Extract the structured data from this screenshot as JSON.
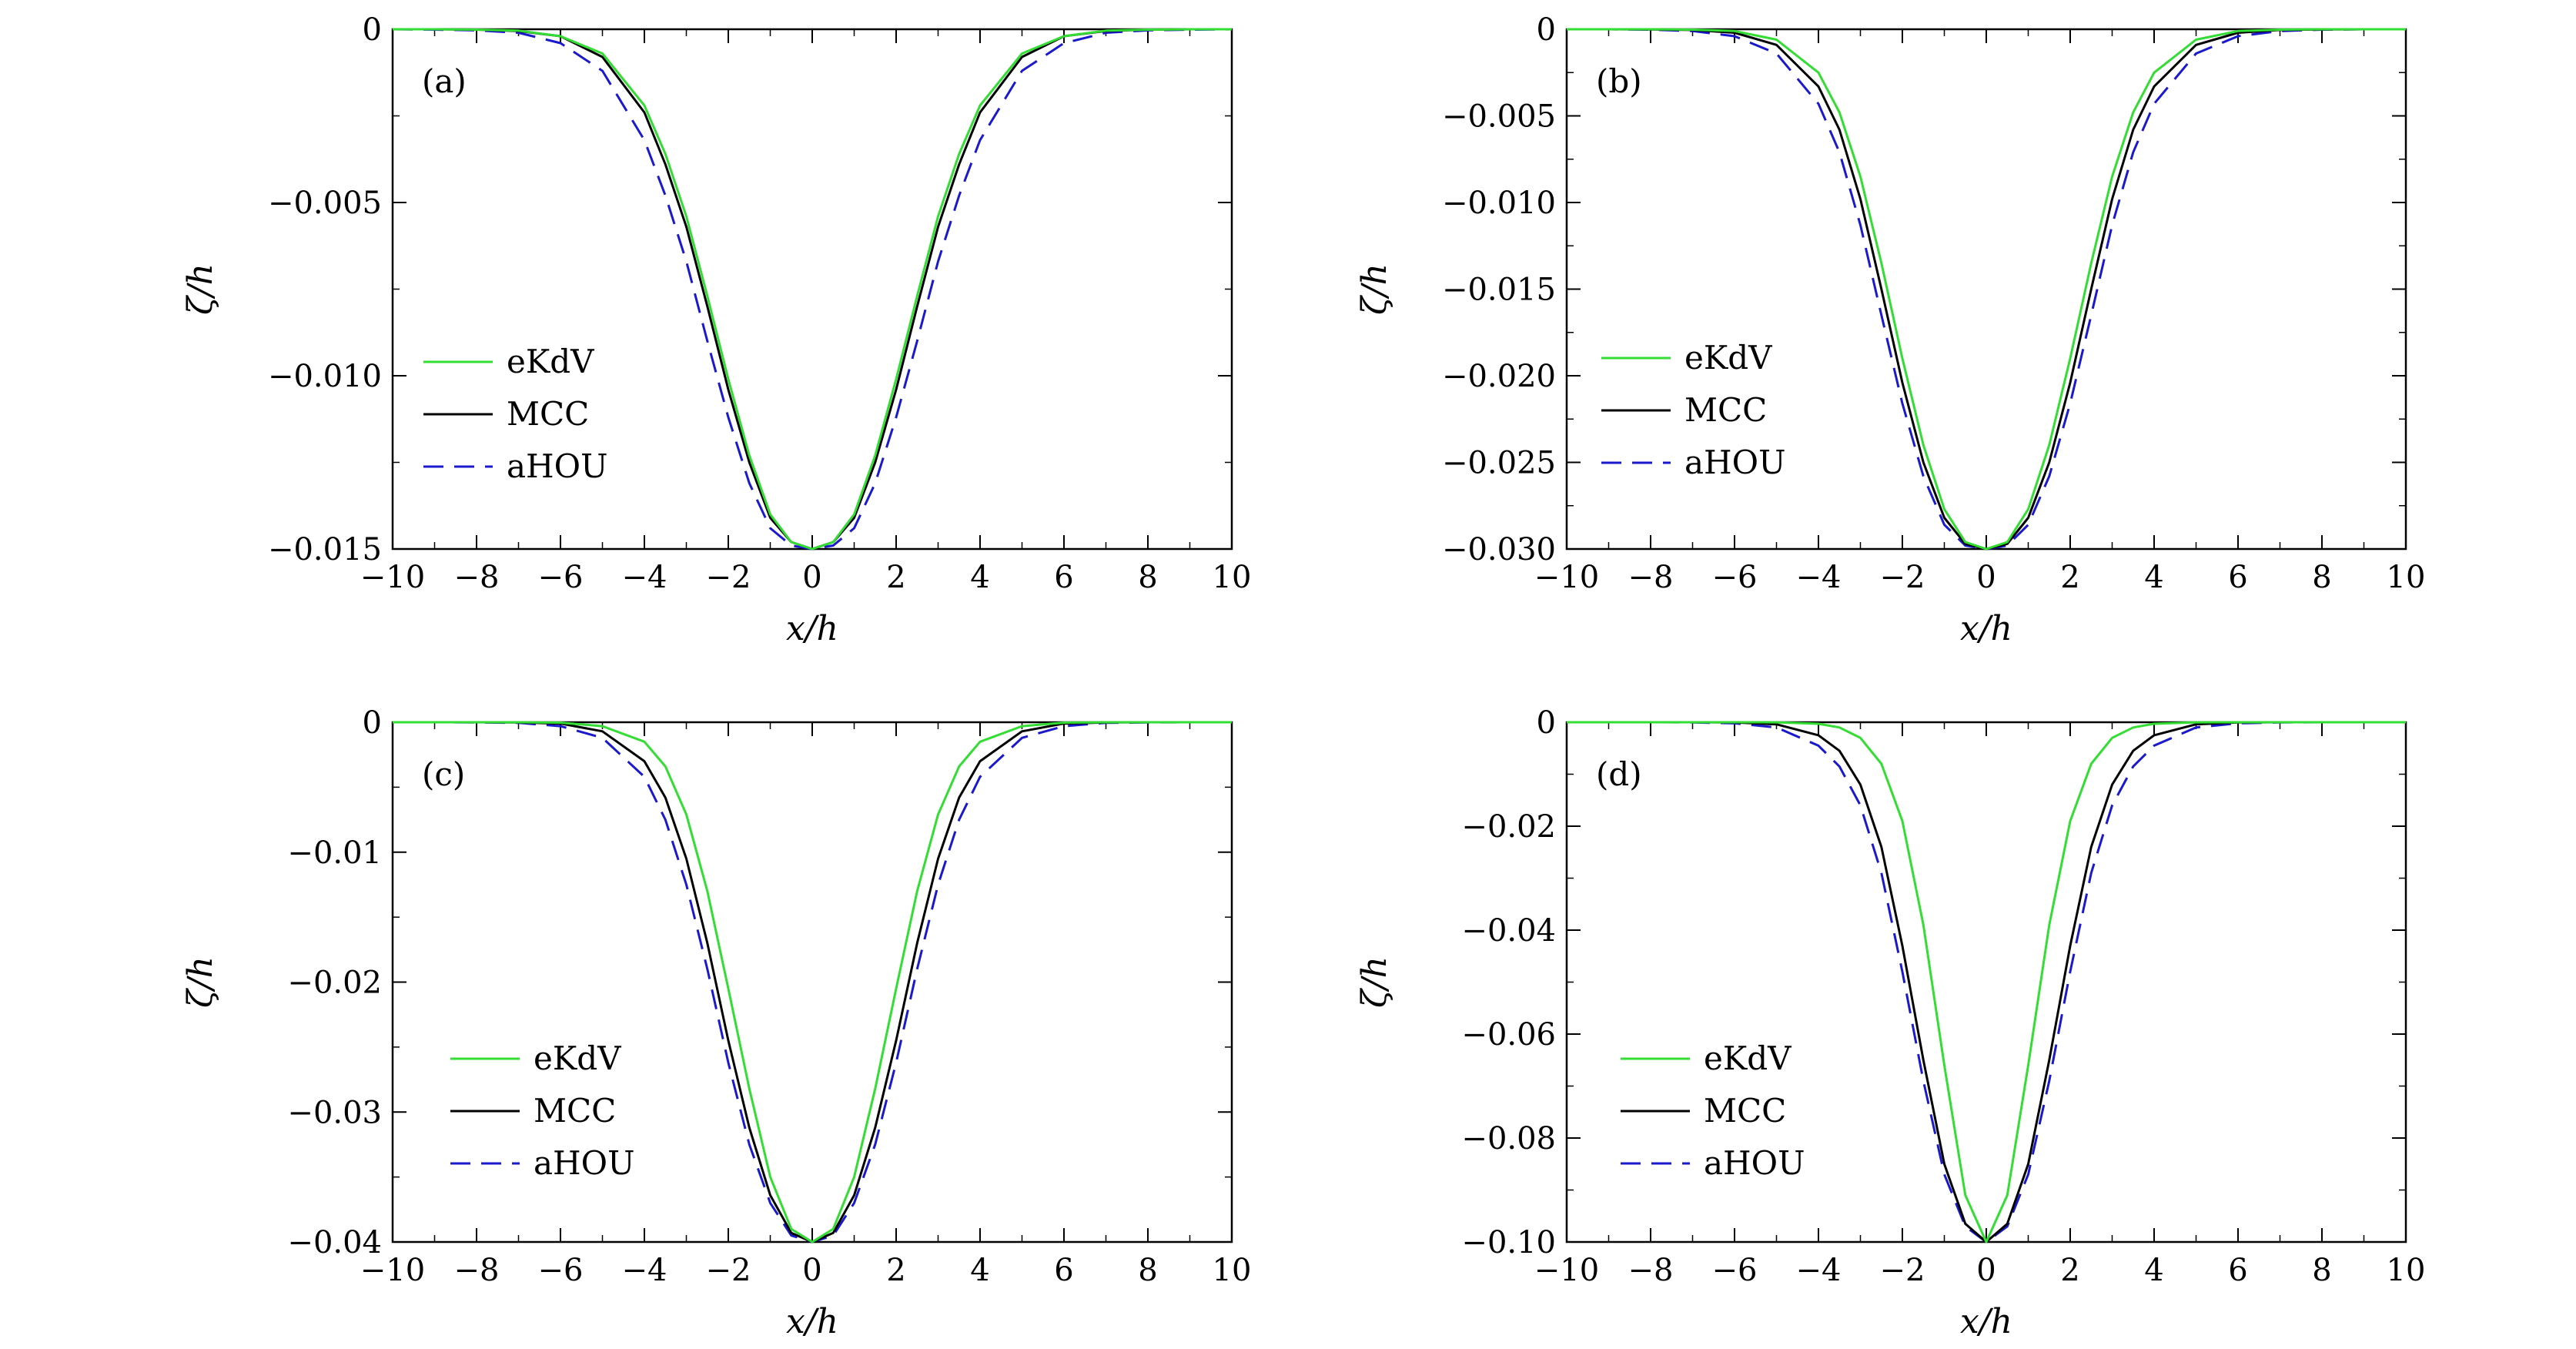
{
  "figure": {
    "colors": {
      "eKdV": "#33dd33",
      "MCC": "#000000",
      "aHOU": "#1a1acc"
    }
  },
  "chart_data": [
    {
      "type": "line",
      "panel_label": "(a)",
      "xlabel": "x/h",
      "ylabel": "ζ/h",
      "xlim": [
        -10,
        10
      ],
      "ylim": [
        -0.015,
        0
      ],
      "xticks": [
        -10,
        -8,
        -6,
        -4,
        -2,
        0,
        2,
        4,
        6,
        8,
        10
      ],
      "xtick_labels": [
        "−10",
        "−8",
        "−6",
        "−4",
        "−2",
        "0",
        "2",
        "4",
        "6",
        "8",
        "10"
      ],
      "yticks": [
        0,
        -0.005,
        -0.01,
        -0.015
      ],
      "ytick_labels": [
        "0",
        "−0.005",
        "−0.010",
        "−0.015"
      ],
      "grid": false,
      "legend_position": "bottom-left",
      "x": [
        -10,
        -9,
        -8,
        -7,
        -6,
        -5,
        -4,
        -3.5,
        -3,
        -2.5,
        -2,
        -1.5,
        -1,
        -0.5,
        0,
        0.5,
        1,
        1.5,
        2,
        2.5,
        3,
        3.5,
        4,
        5,
        6,
        7,
        8,
        9,
        10
      ],
      "series": [
        {
          "name": "eKdV",
          "style": "solid",
          "values": [
            0,
            0,
            -1e-05,
            -4e-05,
            -0.0002,
            -0.0007,
            -0.0022,
            -0.0036,
            -0.0054,
            -0.0077,
            -0.0101,
            -0.0123,
            -0.014,
            -0.0148,
            -0.015,
            -0.0148,
            -0.014,
            -0.0123,
            -0.0101,
            -0.0077,
            -0.0054,
            -0.0036,
            -0.0022,
            -0.0007,
            -0.0002,
            -4e-05,
            -1e-05,
            0,
            0
          ]
        },
        {
          "name": "MCC",
          "style": "solid",
          "values": [
            0,
            0,
            -1e-05,
            -5e-05,
            -0.0002,
            -0.0008,
            -0.0024,
            -0.0039,
            -0.0057,
            -0.008,
            -0.0104,
            -0.0125,
            -0.0141,
            -0.0148,
            -0.015,
            -0.0148,
            -0.0141,
            -0.0125,
            -0.0104,
            -0.008,
            -0.0057,
            -0.0039,
            -0.0024,
            -0.0008,
            -0.0002,
            -5e-05,
            -1e-05,
            0,
            0
          ]
        },
        {
          "name": "aHOU",
          "style": "dashed",
          "values": [
            0,
            -1e-05,
            -3e-05,
            -0.0001,
            -0.0004,
            -0.0012,
            -0.0032,
            -0.0048,
            -0.0067,
            -0.009,
            -0.0112,
            -0.0131,
            -0.0144,
            -0.0149,
            -0.015,
            -0.0149,
            -0.0144,
            -0.0131,
            -0.0112,
            -0.009,
            -0.0067,
            -0.0048,
            -0.0032,
            -0.0012,
            -0.0004,
            -0.0001,
            -3e-05,
            -1e-05,
            0
          ]
        }
      ]
    },
    {
      "type": "line",
      "panel_label": "(b)",
      "xlabel": "x/h",
      "ylabel": "ζ/h",
      "xlim": [
        -10,
        10
      ],
      "ylim": [
        -0.03,
        0
      ],
      "xticks": [
        -10,
        -8,
        -6,
        -4,
        -2,
        0,
        2,
        4,
        6,
        8,
        10
      ],
      "xtick_labels": [
        "−10",
        "−8",
        "−6",
        "−4",
        "−2",
        "0",
        "2",
        "4",
        "6",
        "8",
        "10"
      ],
      "yticks": [
        0,
        -0.005,
        -0.01,
        -0.015,
        -0.02,
        -0.025,
        -0.03
      ],
      "ytick_labels": [
        "0",
        "−0.005",
        "−0.010",
        "−0.015",
        "−0.020",
        "−0.025",
        "−0.030"
      ],
      "grid": false,
      "legend_position": "center-left",
      "x": [
        -10,
        -9,
        -8,
        -7,
        -6,
        -5,
        -4,
        -3.5,
        -3,
        -2.5,
        -2,
        -1.5,
        -1,
        -0.5,
        0,
        0.5,
        1,
        1.5,
        2,
        2.5,
        3,
        3.5,
        4,
        5,
        6,
        7,
        8,
        9,
        10
      ],
      "series": [
        {
          "name": "eKdV",
          "style": "solid",
          "values": [
            0,
            0,
            0,
            -2e-05,
            -0.0001,
            -0.0006,
            -0.0025,
            -0.0048,
            -0.0085,
            -0.0135,
            -0.019,
            -0.024,
            -0.0277,
            -0.0296,
            -0.03,
            -0.0296,
            -0.0277,
            -0.024,
            -0.019,
            -0.0135,
            -0.0085,
            -0.0048,
            -0.0025,
            -0.0006,
            -0.0001,
            -2e-05,
            0,
            0,
            0
          ]
        },
        {
          "name": "MCC",
          "style": "solid",
          "values": [
            0,
            0,
            -1e-05,
            -4e-05,
            -0.0002,
            -0.0009,
            -0.0033,
            -0.0058,
            -0.0098,
            -0.015,
            -0.0204,
            -0.025,
            -0.0282,
            -0.0297,
            -0.03,
            -0.0297,
            -0.0282,
            -0.025,
            -0.0204,
            -0.015,
            -0.0098,
            -0.0058,
            -0.0033,
            -0.0009,
            -0.0002,
            -4e-05,
            -1e-05,
            0,
            0
          ]
        },
        {
          "name": "aHOU",
          "style": "dashed",
          "values": [
            0,
            0,
            -2e-05,
            -0.0001,
            -0.0004,
            -0.0014,
            -0.0043,
            -0.0071,
            -0.0113,
            -0.0165,
            -0.0216,
            -0.0258,
            -0.0286,
            -0.0298,
            -0.03,
            -0.0298,
            -0.0286,
            -0.0258,
            -0.0216,
            -0.0165,
            -0.0113,
            -0.0071,
            -0.0043,
            -0.0014,
            -0.0004,
            -0.0001,
            -2e-05,
            0,
            0
          ]
        }
      ]
    },
    {
      "type": "line",
      "panel_label": "(c)",
      "xlabel": "x/h",
      "ylabel": "ζ/h",
      "xlim": [
        -10,
        10
      ],
      "ylim": [
        -0.04,
        0
      ],
      "xticks": [
        -10,
        -8,
        -6,
        -4,
        -2,
        0,
        2,
        4,
        6,
        8,
        10
      ],
      "xtick_labels": [
        "−10",
        "−8",
        "−6",
        "−4",
        "−2",
        "0",
        "2",
        "4",
        "6",
        "8",
        "10"
      ],
      "yticks": [
        0,
        -0.01,
        -0.02,
        -0.03,
        -0.04
      ],
      "ytick_labels": [
        "0",
        "−0.01",
        "−0.02",
        "−0.03",
        "−0.04"
      ],
      "grid": false,
      "legend_position": "bottom-left",
      "x": [
        -10,
        -9,
        -8,
        -7,
        -6,
        -5,
        -4,
        -3.5,
        -3,
        -2.5,
        -2,
        -1.5,
        -1,
        -0.5,
        0,
        0.5,
        1,
        1.5,
        2,
        2.5,
        3,
        3.5,
        4,
        5,
        6,
        7,
        8,
        9,
        10
      ],
      "series": [
        {
          "name": "eKdV",
          "style": "solid",
          "values": [
            0,
            0,
            0,
            0,
            -3e-05,
            -0.0003,
            -0.0015,
            -0.0034,
            -0.0071,
            -0.013,
            -0.0205,
            -0.0282,
            -0.035,
            -0.039,
            -0.04,
            -0.039,
            -0.035,
            -0.0282,
            -0.0205,
            -0.013,
            -0.0071,
            -0.0034,
            -0.0015,
            -0.0003,
            -3e-05,
            0,
            0,
            0,
            0
          ]
        },
        {
          "name": "MCC",
          "style": "solid",
          "values": [
            0,
            0,
            0,
            -2e-05,
            -0.0001,
            -0.0007,
            -0.003,
            -0.0058,
            -0.0105,
            -0.017,
            -0.0245,
            -0.0312,
            -0.0364,
            -0.0393,
            -0.04,
            -0.0393,
            -0.0364,
            -0.0312,
            -0.0245,
            -0.017,
            -0.0105,
            -0.0058,
            -0.003,
            -0.0007,
            -0.0001,
            -2e-05,
            0,
            0,
            0
          ]
        },
        {
          "name": "aHOU",
          "style": "dashed",
          "values": [
            0,
            0,
            -1e-05,
            -5e-05,
            -0.0003,
            -0.0012,
            -0.0042,
            -0.0075,
            -0.0125,
            -0.019,
            -0.0262,
            -0.0325,
            -0.037,
            -0.0395,
            -0.04,
            -0.0395,
            -0.037,
            -0.0325,
            -0.0262,
            -0.019,
            -0.0125,
            -0.0075,
            -0.0042,
            -0.0012,
            -0.0003,
            -5e-05,
            -1e-05,
            0,
            0
          ]
        }
      ]
    },
    {
      "type": "line",
      "panel_label": "(d)",
      "xlabel": "x/h",
      "ylabel": "ζ/h",
      "xlim": [
        -10,
        10
      ],
      "ylim": [
        -0.1,
        0
      ],
      "xticks": [
        -10,
        -8,
        -6,
        -4,
        -2,
        0,
        2,
        4,
        6,
        8,
        10
      ],
      "xtick_labels": [
        "−10",
        "−8",
        "−6",
        "−4",
        "−2",
        "0",
        "2",
        "4",
        "6",
        "8",
        "10"
      ],
      "yticks": [
        0,
        -0.02,
        -0.04,
        -0.06,
        -0.08,
        -0.1
      ],
      "ytick_labels": [
        "0",
        "−0.02",
        "−0.04",
        "−0.06",
        "−0.08",
        "−0.10"
      ],
      "grid": false,
      "legend_position": "bottom-left",
      "x": [
        -10,
        -9,
        -8,
        -7,
        -6,
        -5,
        -4,
        -3.5,
        -3,
        -2.5,
        -2,
        -1.5,
        -1,
        -0.5,
        0,
        0.5,
        1,
        1.5,
        2,
        2.5,
        3,
        3.5,
        4,
        5,
        6,
        7,
        8,
        9,
        10
      ],
      "series": [
        {
          "name": "eKdV",
          "style": "solid",
          "values": [
            0,
            0,
            0,
            0,
            0,
            -2e-05,
            -0.0003,
            -0.001,
            -0.003,
            -0.008,
            -0.019,
            -0.039,
            -0.066,
            -0.091,
            -0.1,
            -0.091,
            -0.066,
            -0.039,
            -0.019,
            -0.008,
            -0.003,
            -0.001,
            -0.0003,
            -2e-05,
            0,
            0,
            0,
            0,
            0
          ]
        },
        {
          "name": "MCC",
          "style": "solid",
          "values": [
            0,
            0,
            0,
            0,
            -5e-05,
            -0.0004,
            -0.0025,
            -0.0055,
            -0.012,
            -0.024,
            -0.043,
            -0.065,
            -0.085,
            -0.0965,
            -0.1,
            -0.0965,
            -0.085,
            -0.065,
            -0.043,
            -0.024,
            -0.012,
            -0.0055,
            -0.0025,
            -0.0004,
            -5e-05,
            0,
            0,
            0,
            0
          ]
        },
        {
          "name": "aHOU",
          "style": "dashed",
          "values": [
            0,
            0,
            0,
            -3e-05,
            -0.0002,
            -0.001,
            -0.0045,
            -0.0085,
            -0.016,
            -0.029,
            -0.048,
            -0.069,
            -0.087,
            -0.097,
            -0.1,
            -0.097,
            -0.087,
            -0.069,
            -0.048,
            -0.029,
            -0.016,
            -0.0085,
            -0.0045,
            -0.001,
            -0.0002,
            -3e-05,
            0,
            0,
            0
          ]
        }
      ]
    }
  ]
}
